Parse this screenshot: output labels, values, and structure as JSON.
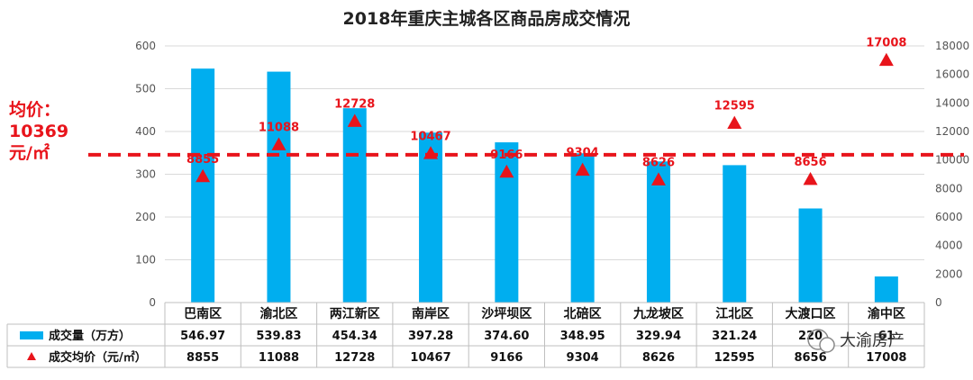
{
  "chart_data": {
    "type": "bar",
    "title": "2018年重庆主城各区商品房成交情况",
    "categories": [
      "巴南区",
      "渝北区",
      "两江新区",
      "南岸区",
      "沙坪坝区",
      "北碚区",
      "九龙坡区",
      "江北区",
      "大渡口区",
      "渝中区"
    ],
    "series": [
      {
        "name": "成交量（万方）",
        "type": "bar",
        "axis": "left",
        "color": "#00aeef",
        "values": [
          546.97,
          539.83,
          454.34,
          397.28,
          374.6,
          348.95,
          329.94,
          321.24,
          220,
          61
        ],
        "labels": [
          "546.97",
          "539.83",
          "454.34",
          "397.28",
          "374.60",
          "348.95",
          "329.94",
          "321.24",
          "220",
          "61"
        ]
      },
      {
        "name": "成交均价（元/㎡）",
        "type": "scatter",
        "marker": "triangle",
        "axis": "right",
        "color": "#e8141b",
        "values": [
          8855,
          11088,
          12728,
          10467,
          9166,
          9304,
          8626,
          12595,
          8656,
          17008
        ],
        "labels": [
          "8855",
          "11088",
          "12728",
          "10467",
          "9166",
          "9304",
          "8626",
          "12595",
          "8656",
          "17008"
        ]
      }
    ],
    "y_left": {
      "min": 0,
      "max": 600,
      "ticks": [
        "0",
        "100",
        "200",
        "300",
        "400",
        "500",
        "600"
      ]
    },
    "y_right": {
      "min": 0,
      "max": 18000,
      "ticks": [
        "0",
        "2000",
        "4000",
        "6000",
        "8000",
        "10000",
        "12000",
        "14000",
        "16000",
        "18000"
      ]
    },
    "reference_line": {
      "value": 10369,
      "axis": "right",
      "color": "#e8141b",
      "style": "dashed",
      "label_lines": [
        "均价：",
        "10369",
        "元/㎡"
      ]
    },
    "data_table": true,
    "grid": true,
    "legend": "data-table-left"
  },
  "watermark": "大渝房产"
}
